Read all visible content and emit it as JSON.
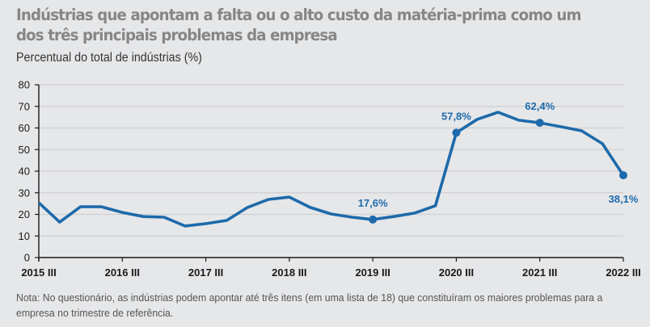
{
  "chart_data": {
    "type": "line",
    "title": "Indústrias que apontam a falta ou o alto custo da matéria-prima como um dos três principais problemas da empresa",
    "subtitle": "Percentual do total de indústrias (%)",
    "xlabel": "",
    "ylabel": "Percentual do total de indústrias (%)",
    "ylim": [
      0,
      80
    ],
    "yticks": [
      "0",
      "10",
      "20",
      "30",
      "40",
      "50",
      "60",
      "70",
      "80"
    ],
    "ytick_values": [
      0,
      10,
      20,
      30,
      40,
      50,
      60,
      70,
      80
    ],
    "xtick_labels": [
      "2015 III",
      "2016 III",
      "2017 III",
      "2018 III",
      "2019 III",
      "2020 III",
      "2021 III",
      "2022 III"
    ],
    "xtick_indices": [
      0,
      4,
      8,
      12,
      16,
      20,
      24,
      28
    ],
    "grid": true,
    "legend": "none",
    "series": [
      {
        "name": "Falta ou alto custo da matéria-prima",
        "color": "#1d6aaa",
        "x": [
          "2015 III",
          "2015 IV",
          "2016 I",
          "2016 II",
          "2016 III",
          "2016 IV",
          "2017 I",
          "2017 II",
          "2017 III",
          "2017 IV",
          "2018 I",
          "2018 II",
          "2018 III",
          "2018 IV",
          "2019 I",
          "2019 II",
          "2019 III",
          "2019 IV",
          "2020 I",
          "2020 II",
          "2020 III",
          "2020 IV",
          "2021 I",
          "2021 II",
          "2021 III",
          "2021 IV",
          "2022 I",
          "2022 II",
          "2022 III"
        ],
        "values": [
          25.4,
          16.4,
          23.5,
          23.5,
          20.9,
          19.0,
          18.7,
          14.6,
          15.7,
          17.2,
          23.2,
          26.9,
          28.0,
          23.2,
          20.2,
          18.7,
          17.6,
          19.0,
          20.6,
          24.0,
          57.8,
          64.0,
          67.3,
          63.6,
          62.4,
          60.6,
          58.7,
          52.7,
          38.1
        ]
      }
    ],
    "annotations": [
      {
        "index": 16,
        "label": "17,6%",
        "position": "above"
      },
      {
        "index": 20,
        "label": "57,8%",
        "position": "above"
      },
      {
        "index": 24,
        "label": "62,4%",
        "position": "above"
      },
      {
        "index": 28,
        "label": "38,1%",
        "position": "below"
      }
    ],
    "note": "Nota: No questionário, as indústrias podem apontar até três itens (em uma lista de 18) que constituíram os maiores problemas para a empresa no trimestre de referência."
  }
}
